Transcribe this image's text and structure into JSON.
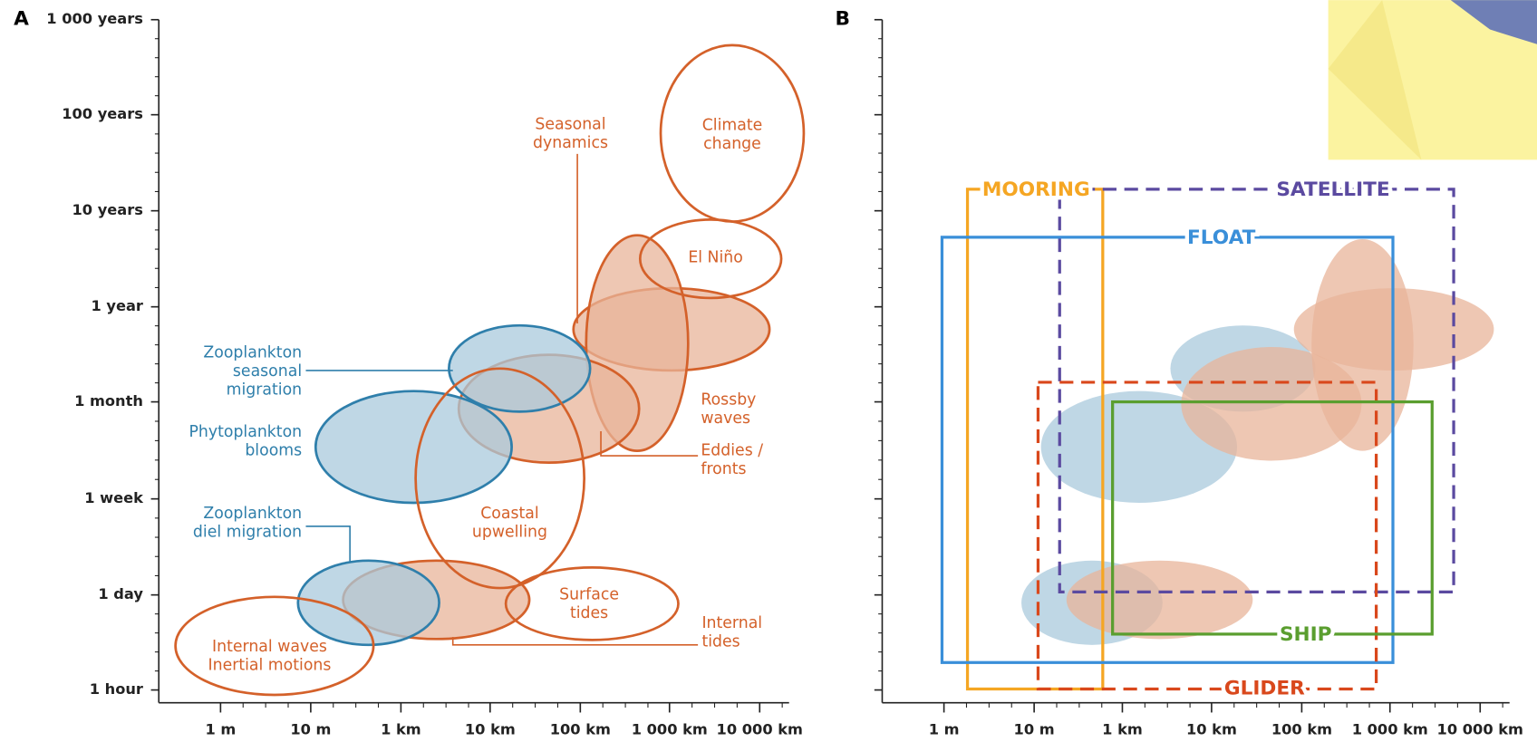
{
  "panel_a": {
    "label": "A",
    "y_ticks": [
      "1 000 years",
      "100 years",
      "10 years",
      "1 year",
      "1 month",
      "1 week",
      "1 day",
      "1 hour"
    ],
    "x_ticks": [
      "1 m",
      "10 m",
      "1 km",
      "10 km",
      "100 km",
      "1 000 km",
      "10 000 km"
    ],
    "labels": [
      {
        "lines": [
          "Climate",
          "change"
        ]
      },
      {
        "lines": [
          "El Niño"
        ]
      },
      {
        "lines": [
          "Seasonal",
          "dynamics"
        ]
      },
      {
        "lines": [
          "Rossby",
          "waves"
        ]
      },
      {
        "lines": [
          "Eddies /",
          "fronts"
        ]
      },
      {
        "lines": [
          "Coastal",
          "upwelling"
        ]
      },
      {
        "lines": [
          "Surface",
          "tides"
        ]
      },
      {
        "lines": [
          "Internal",
          "tides"
        ]
      },
      {
        "lines": [
          "Internal waves",
          "Inertial motions"
        ]
      },
      {
        "lines": [
          "Zooplankton",
          "seasonal",
          "migration"
        ]
      },
      {
        "lines": [
          "Phytoplankton",
          "blooms"
        ]
      },
      {
        "lines": [
          "Zooplankton",
          "diel migration"
        ]
      }
    ]
  },
  "panel_b": {
    "label": "B",
    "x_ticks": [
      "1 m",
      "10 m",
      "1 km",
      "10 km",
      "100 km",
      "1 000 km",
      "10 000 km"
    ],
    "instruments": [
      "MOORING",
      "SATELLITE",
      "FLOAT",
      "GLIDER",
      "SHIP"
    ]
  }
}
